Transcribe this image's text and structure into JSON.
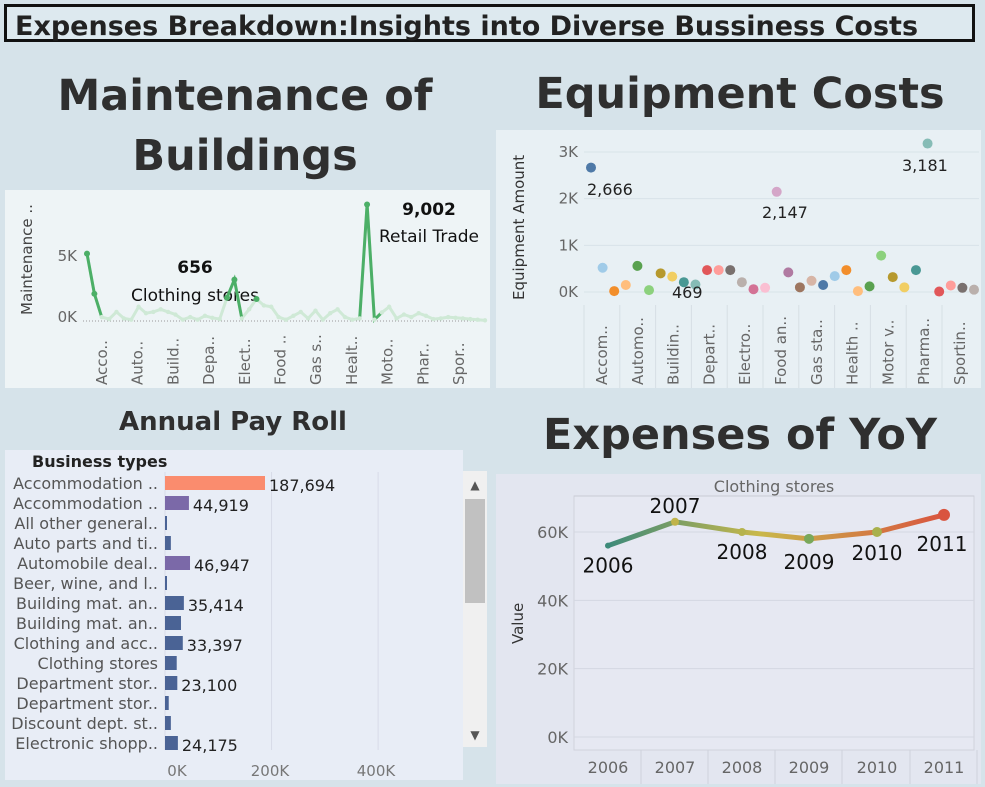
{
  "dashboard_title": "Expenses Breakdown:Insights into Diverse Bussiness Costs",
  "maintenance": {
    "heading_line1": "Maintenance of",
    "heading_line2": "Buildings",
    "ylabel": "Maintenance ..",
    "yticks": [
      "5K",
      "0K"
    ],
    "xticks": [
      "Acco..",
      "Auto..",
      "Build..",
      "Depa..",
      "Elect..",
      "Food ..",
      "Gas s..",
      "Healt..",
      "Moto..",
      "Phar..",
      "Spor.."
    ],
    "annotation_low_value": "656",
    "annotation_low_label": "Clothing stores",
    "annotation_high_value": "9,002",
    "annotation_high_label": "Retail Trade",
    "colors": {
      "line": "#4caf67",
      "faint": "#cfe9d6"
    }
  },
  "equipment": {
    "heading": "Equipment Costs",
    "ylabel": "Equipment Amount",
    "yticks": [
      "3K",
      "2K",
      "1K",
      "0K"
    ],
    "xticks": [
      "Accom..",
      "Automo..",
      "Buildin..",
      "Depart..",
      "Electro..",
      "Food an..",
      "Gas sta..",
      "Health ..",
      "Motor v..",
      "Pharma..",
      "Sportin.."
    ],
    "labels": {
      "a": "2,666",
      "b": "469",
      "c": "2,147",
      "d": "3,181"
    }
  },
  "payroll": {
    "heading": "Annual Pay Roll",
    "column_header": "Business types",
    "xticks": [
      "0K",
      "200K",
      "400K"
    ],
    "scroll_up": "▲",
    "scroll_down": "▼"
  },
  "yoy": {
    "heading": "Expenses of YoY",
    "panel_title": "Clothing stores",
    "ylabel": "Value",
    "yticks": [
      "60K",
      "40K",
      "20K",
      "0K"
    ]
  },
  "chart_data": [
    {
      "type": "line",
      "title": "Maintenance of Buildings",
      "ylabel": "Maintenance ..",
      "ylim": [
        0,
        9500
      ],
      "x": [
        0,
        1,
        2,
        3,
        4,
        5,
        6,
        7,
        8,
        9,
        10,
        11,
        12,
        13,
        14,
        15,
        16,
        17,
        18,
        19,
        20,
        21,
        22,
        23,
        24,
        25,
        26,
        27,
        28,
        29,
        30,
        31,
        32,
        33,
        34,
        35,
        36,
        37,
        38,
        39,
        40,
        41,
        42,
        43,
        44,
        45,
        46,
        47,
        48,
        49,
        50,
        51,
        52,
        53,
        54
      ],
      "values": [
        5200,
        2100,
        300,
        150,
        700,
        200,
        100,
        1100,
        600,
        700,
        900,
        700,
        500,
        100,
        300,
        100,
        400,
        250,
        150,
        1800,
        3200,
        200,
        900,
        1700,
        1200,
        1100,
        300,
        100,
        400,
        700,
        200,
        800,
        100,
        600,
        900,
        300,
        100,
        200,
        9002,
        100,
        656,
        1100,
        200,
        500,
        300,
        600,
        400,
        150,
        200,
        300,
        250,
        200,
        150,
        100,
        50
      ]
    },
    {
      "type": "scatter",
      "title": "Equipment Costs",
      "ylabel": "Equipment Amount",
      "ylim": [
        -200,
        3400
      ],
      "categories": [
        "Accom..",
        "Automo..",
        "Buildin..",
        "Depart..",
        "Electro..",
        "Food an..",
        "Gas sta..",
        "Health ..",
        "Motor v..",
        "Pharma..",
        "Sportin.."
      ],
      "points": [
        {
          "x": 0,
          "y": 2666,
          "c": "#4e79a7"
        },
        {
          "x": 1,
          "y": 520,
          "c": "#a0cbe8"
        },
        {
          "x": 2,
          "y": 20,
          "c": "#f28e2b"
        },
        {
          "x": 3,
          "y": 150,
          "c": "#ffbe7d"
        },
        {
          "x": 4,
          "y": 560,
          "c": "#59a14f"
        },
        {
          "x": 5,
          "y": 40,
          "c": "#8cd17d"
        },
        {
          "x": 6,
          "y": 400,
          "c": "#b6992d"
        },
        {
          "x": 7,
          "y": 330,
          "c": "#f1ce63"
        },
        {
          "x": 8,
          "y": 210,
          "c": "#499894"
        },
        {
          "x": 9,
          "y": 160,
          "c": "#86bcb6"
        },
        {
          "x": 10,
          "y": 469,
          "c": "#e15759"
        },
        {
          "x": 11,
          "y": 470,
          "c": "#ff9d9a"
        },
        {
          "x": 12,
          "y": 470,
          "c": "#79706e"
        },
        {
          "x": 13,
          "y": 210,
          "c": "#bab0ac"
        },
        {
          "x": 14,
          "y": 60,
          "c": "#d37295"
        },
        {
          "x": 15,
          "y": 90,
          "c": "#fabfd2"
        },
        {
          "x": 16,
          "y": 2147,
          "c": "#d4a6c8"
        },
        {
          "x": 17,
          "y": 420,
          "c": "#b07aa1"
        },
        {
          "x": 18,
          "y": 100,
          "c": "#9d7660"
        },
        {
          "x": 19,
          "y": 240,
          "c": "#d7b5a6"
        },
        {
          "x": 20,
          "y": 150,
          "c": "#4e79a7"
        },
        {
          "x": 21,
          "y": 340,
          "c": "#a0cbe8"
        },
        {
          "x": 22,
          "y": 470,
          "c": "#f28e2b"
        },
        {
          "x": 23,
          "y": 20,
          "c": "#ffbe7d"
        },
        {
          "x": 24,
          "y": 120,
          "c": "#59a14f"
        },
        {
          "x": 25,
          "y": 780,
          "c": "#8cd17d"
        },
        {
          "x": 26,
          "y": 320,
          "c": "#b6992d"
        },
        {
          "x": 27,
          "y": 100,
          "c": "#f1ce63"
        },
        {
          "x": 28,
          "y": 470,
          "c": "#499894"
        },
        {
          "x": 29,
          "y": 3181,
          "c": "#86bcb6"
        },
        {
          "x": 30,
          "y": 10,
          "c": "#e15759"
        },
        {
          "x": 31,
          "y": 140,
          "c": "#ff9d9a"
        },
        {
          "x": 32,
          "y": 90,
          "c": "#79706e"
        },
        {
          "x": 33,
          "y": 50,
          "c": "#bab0ac"
        }
      ]
    },
    {
      "type": "bar",
      "orientation": "horizontal",
      "title": "Annual Pay Roll",
      "xlim": [
        0,
        560000
      ],
      "categories": [
        "Accommodation ..",
        "Accommodation ..",
        "All other general..",
        "Auto parts and ti..",
        "Automobile deal..",
        "Beer, wine, and l..",
        "Building mat. an..",
        "Building mat. an..",
        "Clothing and acc..",
        "Clothing stores",
        "Department stor..",
        "Department stor..",
        "Discount dept. st..",
        "Electronic shopp.."
      ],
      "values": [
        187694,
        44919,
        3000,
        11000,
        46947,
        1500,
        35414,
        30000,
        33397,
        22000,
        23100,
        7000,
        11000,
        24175
      ],
      "labels": [
        "187,694",
        "44,919",
        "",
        "",
        "46,947",
        "",
        "35,414",
        "",
        "33,397",
        "",
        "23,100",
        "",
        "",
        "24,175"
      ],
      "colors": [
        "#fa8c6e",
        "#7b69a8",
        "#4a6395",
        "#4a6395",
        "#7b69a8",
        "#4a6395",
        "#4a6395",
        "#4a6395",
        "#4a6395",
        "#4a6395",
        "#4a6395",
        "#4a6395",
        "#4a6395",
        "#4a6395"
      ]
    },
    {
      "type": "line",
      "title": "Expenses of YoY",
      "ylabel": "Value",
      "ylim": [
        0,
        68000
      ],
      "categories": [
        "2006",
        "2007",
        "2008",
        "2009",
        "2010",
        "2011"
      ],
      "values": [
        56000,
        63000,
        60000,
        58000,
        60000,
        65000
      ],
      "colors": {
        "start": "#3d8a7a",
        "mid": "#c9b84a",
        "end": "#d9543f"
      }
    }
  ]
}
